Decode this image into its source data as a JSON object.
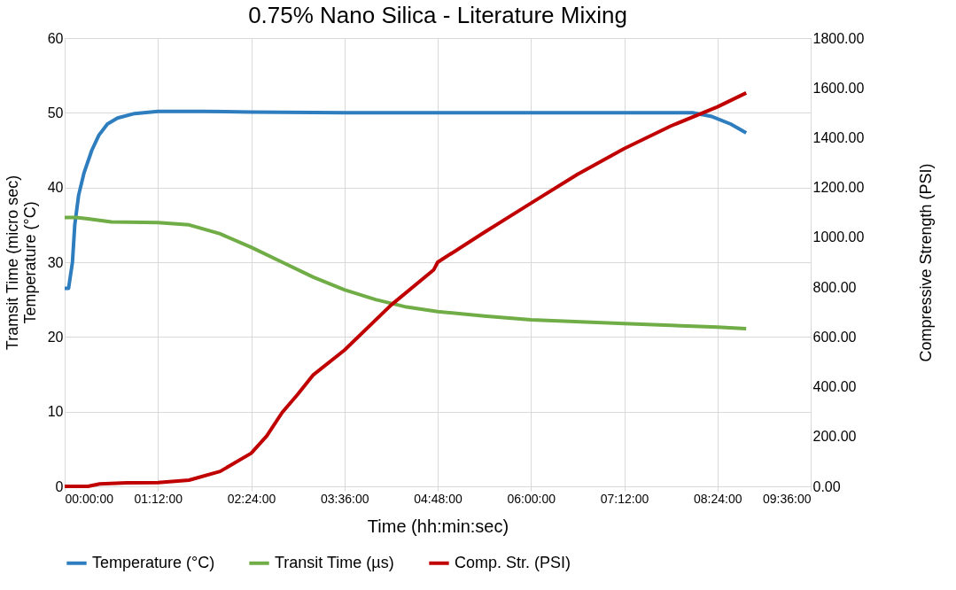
{
  "chart_data": {
    "type": "line",
    "title": "0.75% Nano Silica - Literature Mixing",
    "xlabel": "Time (hh:min:sec)",
    "ylabel": "Tramsit Time (micro sec)\nTemperature (°C)",
    "y2label": "Compressive Strength (PSI)",
    "xlim": [
      0,
      9.6
    ],
    "xticks": [
      {
        "value": 0,
        "label": "00:00:00"
      },
      {
        "value": 1.2,
        "label": "01:12:00"
      },
      {
        "value": 2.4,
        "label": "02:24:00"
      },
      {
        "value": 3.6,
        "label": "03:36:00"
      },
      {
        "value": 4.8,
        "label": "04:48:00"
      },
      {
        "value": 6.0,
        "label": "06:00:00"
      },
      {
        "value": 7.2,
        "label": "07:12:00"
      },
      {
        "value": 8.4,
        "label": "08:24:00"
      },
      {
        "value": 9.6,
        "label": "09:36:00"
      }
    ],
    "ylim": [
      0,
      60
    ],
    "yticks": [
      0,
      10,
      20,
      30,
      40,
      50,
      60
    ],
    "y2lim": [
      0,
      1800
    ],
    "y2ticks": [
      {
        "value": 0,
        "label": "0.00"
      },
      {
        "value": 200,
        "label": "200.00"
      },
      {
        "value": 400,
        "label": "400.00"
      },
      {
        "value": 600,
        "label": "600.00"
      },
      {
        "value": 800,
        "label": "800.00"
      },
      {
        "value": 1000,
        "label": "1000.00"
      },
      {
        "value": 1200,
        "label": "1200.00"
      },
      {
        "value": 1400,
        "label": "1400.00"
      },
      {
        "value": 1600,
        "label": "1600.00"
      },
      {
        "value": 1800,
        "label": "1800.00"
      }
    ],
    "grid": true,
    "legend": "bottom",
    "line_style": "solid",
    "marker": "none",
    "series": [
      {
        "name": "Temperature (°C)",
        "color": "#2e7ebf",
        "x": [
          0,
          0.05,
          0.1,
          0.13,
          0.18,
          0.25,
          0.35,
          0.44,
          0.55,
          0.68,
          0.9,
          1.2,
          1.8,
          2.4,
          3.6,
          4.8,
          6.0,
          7.2,
          8.08,
          8.33,
          8.57,
          8.77
        ],
        "values": [
          26.5,
          26.5,
          30,
          35,
          39,
          42,
          45,
          47,
          48.5,
          49.3,
          49.9,
          50.2,
          50.2,
          50.1,
          50,
          50,
          50,
          50,
          50,
          49.5,
          48.5,
          47.3
        ]
      },
      {
        "name": "Transit Time (µs)",
        "color": "#70ad47",
        "x": [
          0,
          0.15,
          0.3,
          0.6,
          1.2,
          1.6,
          2.0,
          2.4,
          2.8,
          3.2,
          3.6,
          4.0,
          4.4,
          4.8,
          5.4,
          6.0,
          7.2,
          8.4,
          8.77
        ],
        "values": [
          36,
          36,
          35.8,
          35.4,
          35.3,
          35.0,
          33.8,
          32.0,
          30.0,
          28.0,
          26.3,
          25.0,
          24.0,
          23.4,
          22.8,
          22.3,
          21.8,
          21.3,
          21.1
        ]
      },
      {
        "name": "Comp. Str. (PSI)",
        "color": "#c00000",
        "axis": "y2",
        "x": [
          0,
          0.3,
          0.45,
          0.8,
          1.2,
          1.6,
          2.0,
          2.4,
          2.6,
          2.8,
          3.0,
          3.2,
          3.6,
          4.2,
          4.75,
          4.8,
          5.4,
          6.0,
          6.6,
          7.2,
          7.8,
          8.4,
          8.77
        ],
        "values": [
          0,
          0,
          10,
          14,
          15,
          25,
          60,
          133,
          202,
          297,
          370,
          448,
          547,
          728,
          870,
          900,
          1020,
          1137,
          1253,
          1356,
          1447,
          1524,
          1580
        ]
      }
    ]
  }
}
